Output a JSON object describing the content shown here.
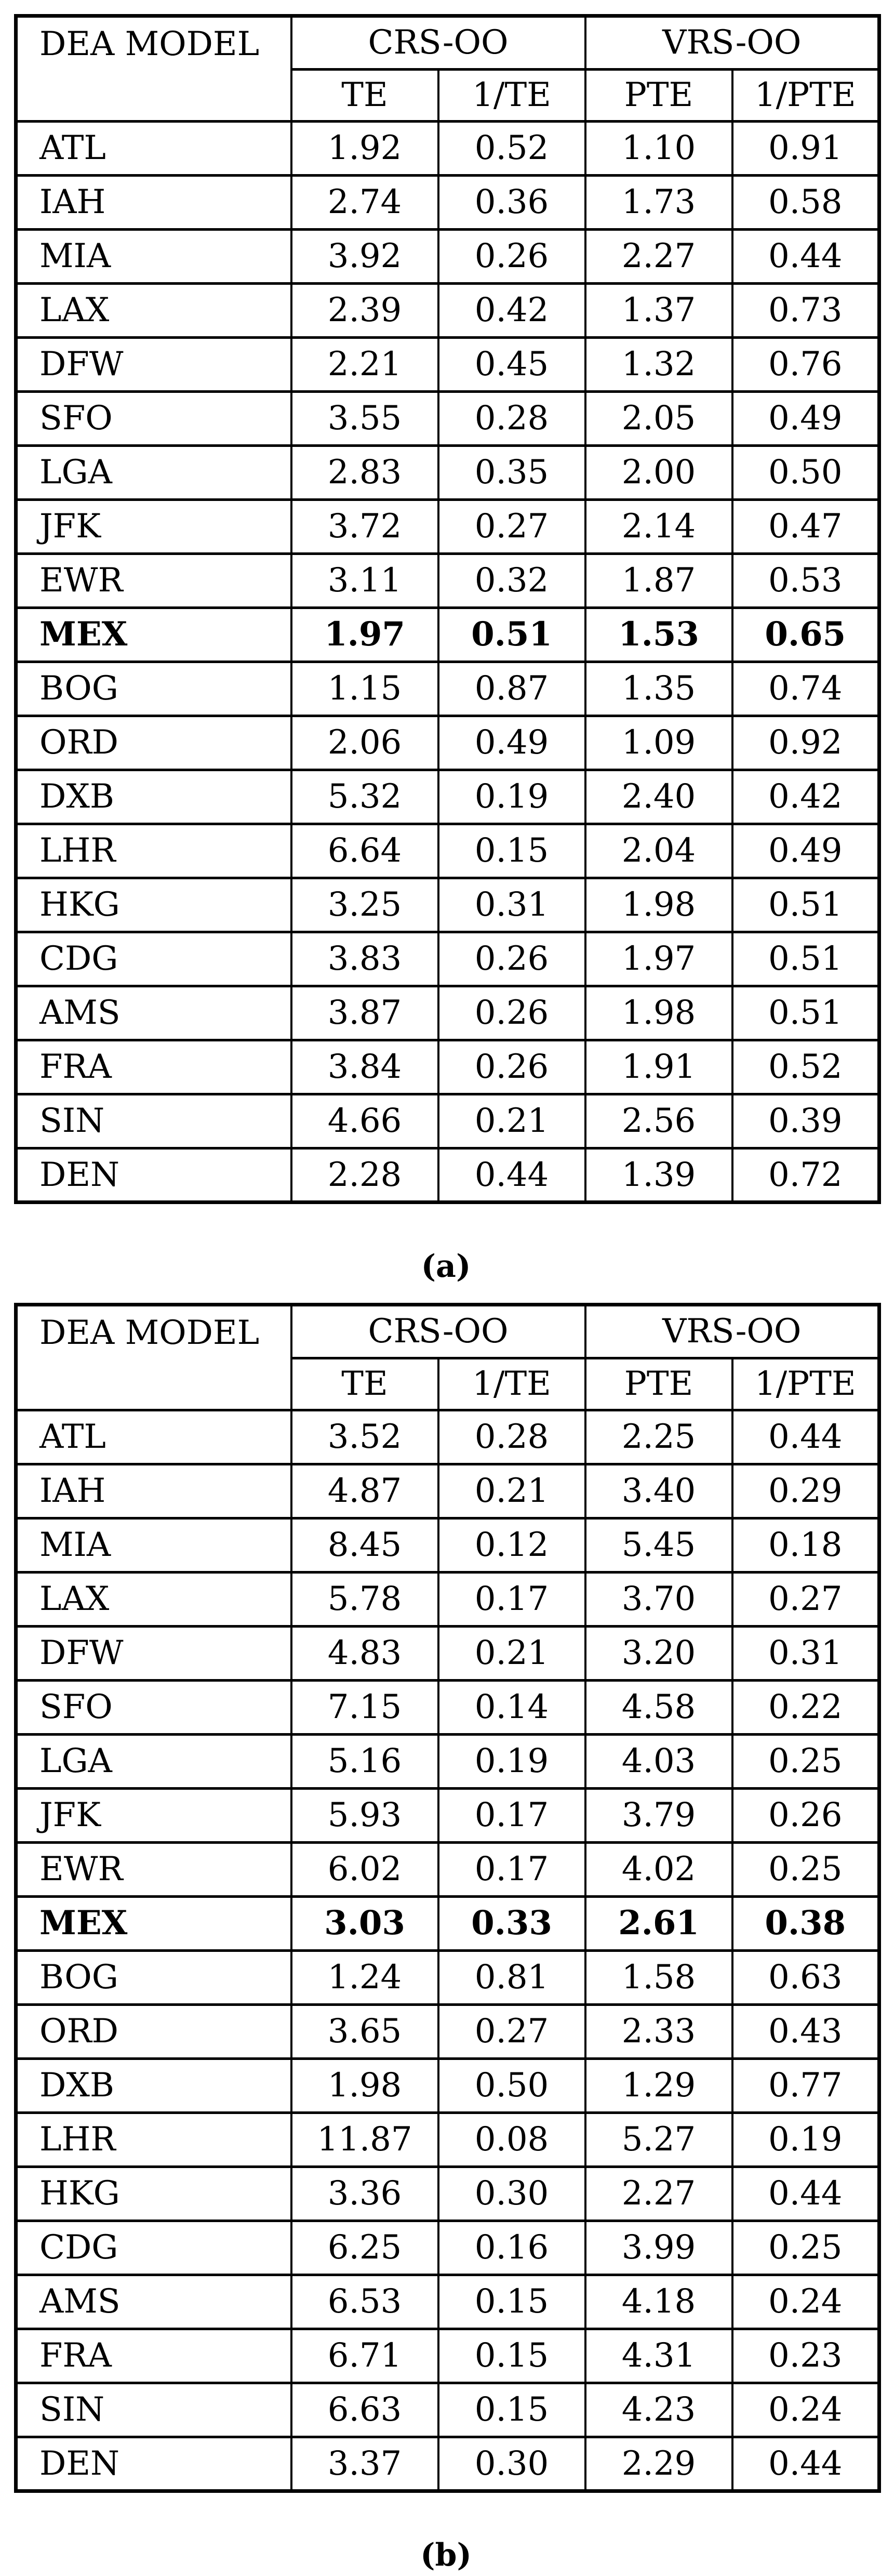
{
  "colors": {
    "text": "#000000",
    "border": "#000000",
    "background": "#ffffff"
  },
  "tables": [
    {
      "caption": "(a)",
      "header": {
        "col0": "DEA MODEL",
        "group1": "CRS-OO",
        "group2": "VRS-OO",
        "sub": [
          "TE",
          "1/TE",
          "PTE",
          "1/PTE"
        ]
      },
      "rows": [
        {
          "model": "ATL",
          "te": "1.92",
          "inv_te": "0.52",
          "pte": "1.10",
          "inv_pte": "0.91",
          "bold": false
        },
        {
          "model": "IAH",
          "te": "2.74",
          "inv_te": "0.36",
          "pte": "1.73",
          "inv_pte": "0.58",
          "bold": false
        },
        {
          "model": "MIA",
          "te": "3.92",
          "inv_te": "0.26",
          "pte": "2.27",
          "inv_pte": "0.44",
          "bold": false
        },
        {
          "model": "LAX",
          "te": "2.39",
          "inv_te": "0.42",
          "pte": "1.37",
          "inv_pte": "0.73",
          "bold": false
        },
        {
          "model": "DFW",
          "te": "2.21",
          "inv_te": "0.45",
          "pte": "1.32",
          "inv_pte": "0.76",
          "bold": false
        },
        {
          "model": "SFO",
          "te": "3.55",
          "inv_te": "0.28",
          "pte": "2.05",
          "inv_pte": "0.49",
          "bold": false
        },
        {
          "model": "LGA",
          "te": "2.83",
          "inv_te": "0.35",
          "pte": "2.00",
          "inv_pte": "0.50",
          "bold": false
        },
        {
          "model": "JFK",
          "te": "3.72",
          "inv_te": "0.27",
          "pte": "2.14",
          "inv_pte": "0.47",
          "bold": false
        },
        {
          "model": "EWR",
          "te": "3.11",
          "inv_te": "0.32",
          "pte": "1.87",
          "inv_pte": "0.53",
          "bold": false
        },
        {
          "model": "MEX",
          "te": "1.97",
          "inv_te": "0.51",
          "pte": "1.53",
          "inv_pte": "0.65",
          "bold": true
        },
        {
          "model": "BOG",
          "te": "1.15",
          "inv_te": "0.87",
          "pte": "1.35",
          "inv_pte": "0.74",
          "bold": false
        },
        {
          "model": "ORD",
          "te": "2.06",
          "inv_te": "0.49",
          "pte": "1.09",
          "inv_pte": "0.92",
          "bold": false
        },
        {
          "model": "DXB",
          "te": "5.32",
          "inv_te": "0.19",
          "pte": "2.40",
          "inv_pte": "0.42",
          "bold": false
        },
        {
          "model": "LHR",
          "te": "6.64",
          "inv_te": "0.15",
          "pte": "2.04",
          "inv_pte": "0.49",
          "bold": false
        },
        {
          "model": "HKG",
          "te": "3.25",
          "inv_te": "0.31",
          "pte": "1.98",
          "inv_pte": "0.51",
          "bold": false
        },
        {
          "model": "CDG",
          "te": "3.83",
          "inv_te": "0.26",
          "pte": "1.97",
          "inv_pte": "0.51",
          "bold": false
        },
        {
          "model": "AMS",
          "te": "3.87",
          "inv_te": "0.26",
          "pte": "1.98",
          "inv_pte": "0.51",
          "bold": false
        },
        {
          "model": "FRA",
          "te": "3.84",
          "inv_te": "0.26",
          "pte": "1.91",
          "inv_pte": "0.52",
          "bold": false
        },
        {
          "model": "SIN",
          "te": "4.66",
          "inv_te": "0.21",
          "pte": "2.56",
          "inv_pte": "0.39",
          "bold": false
        },
        {
          "model": "DEN",
          "te": "2.28",
          "inv_te": "0.44",
          "pte": "1.39",
          "inv_pte": "0.72",
          "bold": false
        }
      ]
    },
    {
      "caption": "(b)",
      "header": {
        "col0": "DEA MODEL",
        "group1": "CRS-OO",
        "group2": "VRS-OO",
        "sub": [
          "TE",
          "1/TE",
          "PTE",
          "1/PTE"
        ]
      },
      "rows": [
        {
          "model": "ATL",
          "te": "3.52",
          "inv_te": "0.28",
          "pte": "2.25",
          "inv_pte": "0.44",
          "bold": false
        },
        {
          "model": "IAH",
          "te": "4.87",
          "inv_te": "0.21",
          "pte": "3.40",
          "inv_pte": "0.29",
          "bold": false
        },
        {
          "model": "MIA",
          "te": "8.45",
          "inv_te": "0.12",
          "pte": "5.45",
          "inv_pte": "0.18",
          "bold": false
        },
        {
          "model": "LAX",
          "te": "5.78",
          "inv_te": "0.17",
          "pte": "3.70",
          "inv_pte": "0.27",
          "bold": false
        },
        {
          "model": "DFW",
          "te": "4.83",
          "inv_te": "0.21",
          "pte": "3.20",
          "inv_pte": "0.31",
          "bold": false
        },
        {
          "model": "SFO",
          "te": "7.15",
          "inv_te": "0.14",
          "pte": "4.58",
          "inv_pte": "0.22",
          "bold": false
        },
        {
          "model": "LGA",
          "te": "5.16",
          "inv_te": "0.19",
          "pte": "4.03",
          "inv_pte": "0.25",
          "bold": false
        },
        {
          "model": "JFK",
          "te": "5.93",
          "inv_te": "0.17",
          "pte": "3.79",
          "inv_pte": "0.26",
          "bold": false
        },
        {
          "model": "EWR",
          "te": "6.02",
          "inv_te": "0.17",
          "pte": "4.02",
          "inv_pte": "0.25",
          "bold": false
        },
        {
          "model": "MEX",
          "te": "3.03",
          "inv_te": "0.33",
          "pte": "2.61",
          "inv_pte": "0.38",
          "bold": true
        },
        {
          "model": "BOG",
          "te": "1.24",
          "inv_te": "0.81",
          "pte": "1.58",
          "inv_pte": "0.63",
          "bold": false
        },
        {
          "model": "ORD",
          "te": "3.65",
          "inv_te": "0.27",
          "pte": "2.33",
          "inv_pte": "0.43",
          "bold": false
        },
        {
          "model": "DXB",
          "te": "1.98",
          "inv_te": "0.50",
          "pte": "1.29",
          "inv_pte": "0.77",
          "bold": false
        },
        {
          "model": "LHR",
          "te": "11.87",
          "inv_te": "0.08",
          "pte": "5.27",
          "inv_pte": "0.19",
          "bold": false
        },
        {
          "model": "HKG",
          "te": "3.36",
          "inv_te": "0.30",
          "pte": "2.27",
          "inv_pte": "0.44",
          "bold": false
        },
        {
          "model": "CDG",
          "te": "6.25",
          "inv_te": "0.16",
          "pte": "3.99",
          "inv_pte": "0.25",
          "bold": false
        },
        {
          "model": "AMS",
          "te": "6.53",
          "inv_te": "0.15",
          "pte": "4.18",
          "inv_pte": "0.24",
          "bold": false
        },
        {
          "model": "FRA",
          "te": "6.71",
          "inv_te": "0.15",
          "pte": "4.31",
          "inv_pte": "0.23",
          "bold": false
        },
        {
          "model": "SIN",
          "te": "6.63",
          "inv_te": "0.15",
          "pte": "4.23",
          "inv_pte": "0.24",
          "bold": false
        },
        {
          "model": "DEN",
          "te": "3.37",
          "inv_te": "0.30",
          "pte": "2.29",
          "inv_pte": "0.44",
          "bold": false
        }
      ]
    }
  ],
  "chart_data": [
    {
      "type": "table",
      "title": "(a)",
      "columns": [
        "DEA MODEL",
        "CRS-OO TE",
        "CRS-OO 1/TE",
        "VRS-OO PTE",
        "VRS-OO 1/PTE"
      ],
      "rows": [
        [
          "ATL",
          1.92,
          0.52,
          1.1,
          0.91
        ],
        [
          "IAH",
          2.74,
          0.36,
          1.73,
          0.58
        ],
        [
          "MIA",
          3.92,
          0.26,
          2.27,
          0.44
        ],
        [
          "LAX",
          2.39,
          0.42,
          1.37,
          0.73
        ],
        [
          "DFW",
          2.21,
          0.45,
          1.32,
          0.76
        ],
        [
          "SFO",
          3.55,
          0.28,
          2.05,
          0.49
        ],
        [
          "LGA",
          2.83,
          0.35,
          2.0,
          0.5
        ],
        [
          "JFK",
          3.72,
          0.27,
          2.14,
          0.47
        ],
        [
          "EWR",
          3.11,
          0.32,
          1.87,
          0.53
        ],
        [
          "MEX",
          1.97,
          0.51,
          1.53,
          0.65
        ],
        [
          "BOG",
          1.15,
          0.87,
          1.35,
          0.74
        ],
        [
          "ORD",
          2.06,
          0.49,
          1.09,
          0.92
        ],
        [
          "DXB",
          5.32,
          0.19,
          2.4,
          0.42
        ],
        [
          "LHR",
          6.64,
          0.15,
          2.04,
          0.49
        ],
        [
          "HKG",
          3.25,
          0.31,
          1.98,
          0.51
        ],
        [
          "CDG",
          3.83,
          0.26,
          1.97,
          0.51
        ],
        [
          "AMS",
          3.87,
          0.26,
          1.98,
          0.51
        ],
        [
          "FRA",
          3.84,
          0.26,
          1.91,
          0.52
        ],
        [
          "SIN",
          4.66,
          0.21,
          2.56,
          0.39
        ],
        [
          "DEN",
          2.28,
          0.44,
          1.39,
          0.72
        ]
      ]
    },
    {
      "type": "table",
      "title": "(b)",
      "columns": [
        "DEA MODEL",
        "CRS-OO TE",
        "CRS-OO 1/TE",
        "VRS-OO PTE",
        "VRS-OO 1/PTE"
      ],
      "rows": [
        [
          "ATL",
          3.52,
          0.28,
          2.25,
          0.44
        ],
        [
          "IAH",
          4.87,
          0.21,
          3.4,
          0.29
        ],
        [
          "MIA",
          8.45,
          0.12,
          5.45,
          0.18
        ],
        [
          "LAX",
          5.78,
          0.17,
          3.7,
          0.27
        ],
        [
          "DFW",
          4.83,
          0.21,
          3.2,
          0.31
        ],
        [
          "SFO",
          7.15,
          0.14,
          4.58,
          0.22
        ],
        [
          "LGA",
          5.16,
          0.19,
          4.03,
          0.25
        ],
        [
          "JFK",
          5.93,
          0.17,
          3.79,
          0.26
        ],
        [
          "EWR",
          6.02,
          0.17,
          4.02,
          0.25
        ],
        [
          "MEX",
          3.03,
          0.33,
          2.61,
          0.38
        ],
        [
          "BOG",
          1.24,
          0.81,
          1.58,
          0.63
        ],
        [
          "ORD",
          3.65,
          0.27,
          2.33,
          0.43
        ],
        [
          "DXB",
          1.98,
          0.5,
          1.29,
          0.77
        ],
        [
          "LHR",
          11.87,
          0.08,
          5.27,
          0.19
        ],
        [
          "HKG",
          3.36,
          0.3,
          2.27,
          0.44
        ],
        [
          "CDG",
          6.25,
          0.16,
          3.99,
          0.25
        ],
        [
          "AMS",
          6.53,
          0.15,
          4.18,
          0.24
        ],
        [
          "FRA",
          6.71,
          0.15,
          4.31,
          0.23
        ],
        [
          "SIN",
          6.63,
          0.15,
          4.23,
          0.24
        ],
        [
          "DEN",
          3.37,
          0.3,
          2.29,
          0.44
        ]
      ]
    }
  ]
}
